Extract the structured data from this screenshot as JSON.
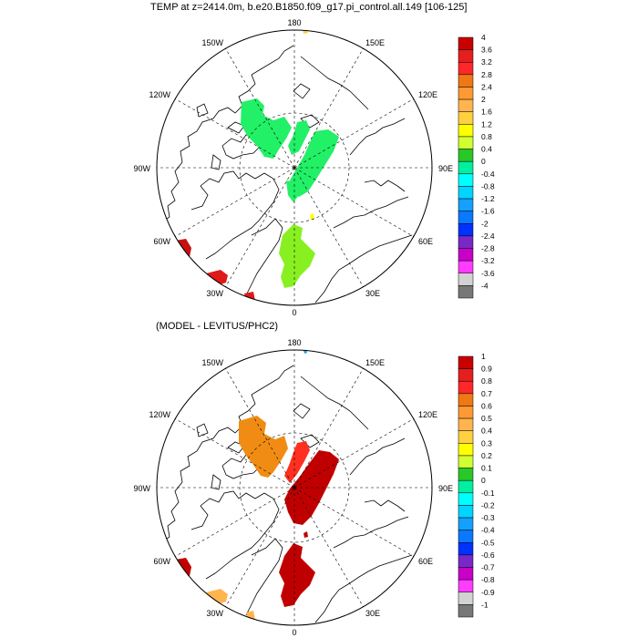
{
  "top_panel": {
    "title": "TEMP at z=2414.0m, b.e20.B1850.f09_g17.pi_control.all.149 [106-125]",
    "longitude_labels": [
      "180",
      "150E",
      "120E",
      "90E",
      "60E",
      "30E",
      "0",
      "30W",
      "60W",
      "90W",
      "120W",
      "150W"
    ],
    "colorbar_labels": [
      "4",
      "3.6",
      "3.2",
      "2.8",
      "2.4",
      "2",
      "1.6",
      "1.2",
      "0.8",
      "0.4",
      "0",
      "-0.4",
      "-0.8",
      "-1.2",
      "-1.6",
      "-2",
      "-2.4",
      "-2.8",
      "-3.2",
      "-3.6",
      "-4"
    ]
  },
  "bottom_panel": {
    "title": "(MODEL - LEVITUS/PHC2)",
    "longitude_labels": [
      "180",
      "150E",
      "120E",
      "90E",
      "60E",
      "30E",
      "0",
      "30W",
      "60W",
      "90W",
      "120W",
      "150W"
    ],
    "colorbar_labels": [
      "1",
      "0.9",
      "0.8",
      "0.7",
      "0.6",
      "0.5",
      "0.4",
      "0.3",
      "0.2",
      "0.1",
      "0",
      "-0.1",
      "-0.2",
      "-0.3",
      "-0.4",
      "-0.5",
      "-0.6",
      "-0.7",
      "-0.8",
      "-0.9",
      "-1"
    ]
  },
  "colorbar_colors": [
    "#c80000",
    "#e61e1e",
    "#ff2828",
    "#f07814",
    "#ff9a32",
    "#ffb450",
    "#ffd040",
    "#ffff00",
    "#d2ff32",
    "#28c828",
    "#00f0a0",
    "#00ffff",
    "#00d4ff",
    "#14a0ff",
    "#0a78ff",
    "#0032ff",
    "#7828c8",
    "#c800c8",
    "#ff3cff",
    "#d2d2d2",
    "#787878"
  ]
}
